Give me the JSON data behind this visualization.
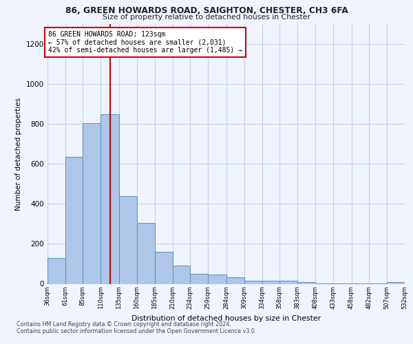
{
  "title1": "86, GREEN HOWARDS ROAD, SAIGHTON, CHESTER, CH3 6FA",
  "title2": "Size of property relative to detached houses in Chester",
  "xlabel": "Distribution of detached houses by size in Chester",
  "ylabel": "Number of detached properties",
  "annotation_line1": "86 GREEN HOWARDS ROAD: 123sqm",
  "annotation_line2": "← 57% of detached houses are smaller (2,031)",
  "annotation_line3": "42% of semi-detached houses are larger (1,485) →",
  "footer1": "Contains HM Land Registry data © Crown copyright and database right 2024.",
  "footer2": "Contains public sector information licensed under the Open Government Licence v3.0.",
  "bar_color": "#aec6e8",
  "bar_edge_color": "#5a8fc0",
  "vline_x": 123,
  "vline_color": "#cc0000",
  "ylim": [
    0,
    1300
  ],
  "bin_edges": [
    36,
    61,
    85,
    110,
    135,
    160,
    185,
    210,
    234,
    259,
    284,
    309,
    334,
    358,
    383,
    408,
    433,
    458,
    482,
    507,
    532
  ],
  "bar_heights": [
    130,
    635,
    805,
    850,
    440,
    305,
    160,
    90,
    50,
    45,
    33,
    16,
    17,
    15,
    8,
    2,
    1,
    1,
    1,
    10
  ],
  "bg_color": "#f0f4ff",
  "grid_color": "#c8d0e0"
}
